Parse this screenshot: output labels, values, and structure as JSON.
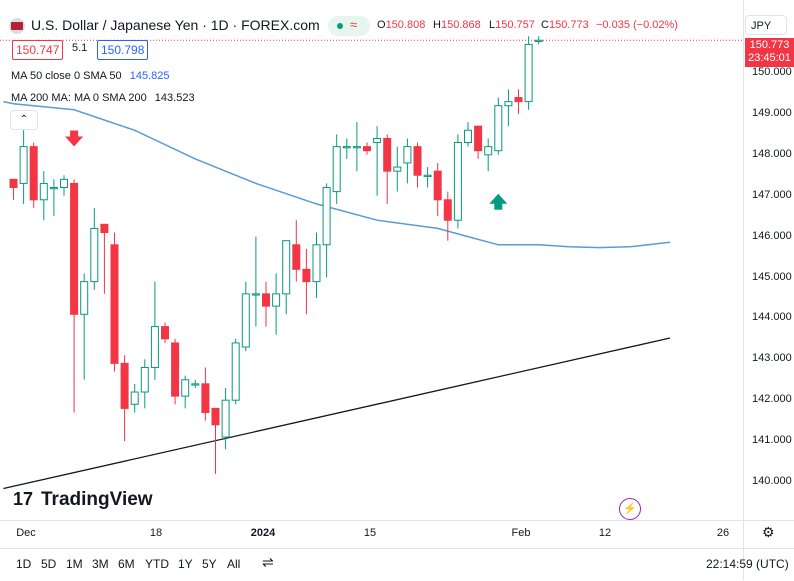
{
  "header": {
    "title": "U.S. Dollar / Japanese Yen · 1D · FOREX.com",
    "ohlc": {
      "o_label": "O",
      "o": "150.808",
      "h_label": "H",
      "h": "150.868",
      "l_label": "L",
      "l": "150.757",
      "c_label": "C",
      "c": "150.773",
      "change": "−0.035 (−0.02%)"
    }
  },
  "trade": {
    "sell": "150.747",
    "spread": "5.1",
    "buy": "150.798"
  },
  "indicators": {
    "ma50_label": "MA 50 close 0 SMA 50",
    "ma50_value": "145.825",
    "ma200_label": "MA 200 MA: MA 0 SMA 200",
    "ma200_value": "143.523"
  },
  "collapse_icon": "chevron-up-icon",
  "currency": "JPY",
  "last_price_tag": {
    "price": "150.773",
    "countdown": "23:45:01"
  },
  "watermark": "TradingView",
  "x_axis_labels": [
    "Dec",
    "18",
    "2024",
    "15",
    "Feb",
    "12",
    "26"
  ],
  "range_buttons": [
    "1D",
    "5D",
    "1M",
    "3M",
    "6M",
    "YTD",
    "1Y",
    "5Y",
    "All"
  ],
  "clock": "22:14:59 (UTC)",
  "colors": {
    "up": "#089981",
    "down": "#f23645",
    "ma50": "#5b9bd5",
    "trend": "#131722"
  },
  "chart_data": {
    "type": "candlestick",
    "title": "U.S. Dollar / Japanese Yen · 1D · FOREX.com",
    "ylim": [
      139.6,
      150.9
    ],
    "y_ticks": [
      140,
      141,
      142,
      143,
      144,
      145,
      146,
      147,
      148,
      149,
      150
    ],
    "x_ticks": [
      "Dec",
      "18",
      "2024",
      "15",
      "Feb",
      "12",
      "26"
    ],
    "candles": [
      {
        "o": 147.4,
        "h": 147.4,
        "l": 146.9,
        "c": 147.2
      },
      {
        "o": 147.3,
        "h": 148.6,
        "l": 146.8,
        "c": 148.2
      },
      {
        "o": 148.2,
        "h": 148.3,
        "l": 146.7,
        "c": 146.9
      },
      {
        "o": 146.9,
        "h": 147.6,
        "l": 146.4,
        "c": 147.3
      },
      {
        "o": 147.2,
        "h": 147.4,
        "l": 146.5,
        "c": 147.2
      },
      {
        "o": 147.2,
        "h": 147.5,
        "l": 147.0,
        "c": 147.4
      },
      {
        "o": 147.3,
        "h": 147.4,
        "l": 141.7,
        "c": 144.1
      },
      {
        "o": 144.1,
        "h": 145.1,
        "l": 142.5,
        "c": 144.9
      },
      {
        "o": 144.9,
        "h": 146.7,
        "l": 144.7,
        "c": 146.2
      },
      {
        "o": 146.3,
        "h": 146.3,
        "l": 144.6,
        "c": 146.1
      },
      {
        "o": 145.8,
        "h": 146.1,
        "l": 142.7,
        "c": 142.9
      },
      {
        "o": 142.9,
        "h": 143.1,
        "l": 141.0,
        "c": 141.8
      },
      {
        "o": 141.9,
        "h": 142.4,
        "l": 141.7,
        "c": 142.2
      },
      {
        "o": 142.2,
        "h": 143.0,
        "l": 141.8,
        "c": 142.8
      },
      {
        "o": 142.8,
        "h": 144.9,
        "l": 142.5,
        "c": 143.8
      },
      {
        "o": 143.8,
        "h": 143.9,
        "l": 143.4,
        "c": 143.5
      },
      {
        "o": 143.4,
        "h": 143.5,
        "l": 141.9,
        "c": 142.1
      },
      {
        "o": 142.1,
        "h": 142.6,
        "l": 141.8,
        "c": 142.5
      },
      {
        "o": 142.4,
        "h": 142.5,
        "l": 142.3,
        "c": 142.4
      },
      {
        "o": 142.4,
        "h": 142.8,
        "l": 141.5,
        "c": 141.7
      },
      {
        "o": 141.8,
        "h": 141.8,
        "l": 140.2,
        "c": 141.4
      },
      {
        "o": 141.1,
        "h": 142.3,
        "l": 140.8,
        "c": 142.0
      },
      {
        "o": 142.0,
        "h": 143.5,
        "l": 141.9,
        "c": 143.4
      },
      {
        "o": 143.3,
        "h": 144.9,
        "l": 143.2,
        "c": 144.6
      },
      {
        "o": 144.6,
        "h": 146.0,
        "l": 143.8,
        "c": 144.6
      },
      {
        "o": 144.6,
        "h": 144.9,
        "l": 143.8,
        "c": 144.3
      },
      {
        "o": 144.3,
        "h": 145.1,
        "l": 143.6,
        "c": 144.6
      },
      {
        "o": 144.6,
        "h": 145.9,
        "l": 144.1,
        "c": 145.9
      },
      {
        "o": 145.8,
        "h": 146.4,
        "l": 144.9,
        "c": 145.2
      },
      {
        "o": 145.2,
        "h": 145.7,
        "l": 144.1,
        "c": 144.9
      },
      {
        "o": 144.9,
        "h": 146.1,
        "l": 144.5,
        "c": 145.8
      },
      {
        "o": 145.8,
        "h": 147.3,
        "l": 145.0,
        "c": 147.2
      },
      {
        "o": 147.1,
        "h": 148.5,
        "l": 146.8,
        "c": 148.2
      },
      {
        "o": 148.2,
        "h": 148.4,
        "l": 147.9,
        "c": 148.2
      },
      {
        "o": 148.2,
        "h": 148.8,
        "l": 147.6,
        "c": 148.2
      },
      {
        "o": 148.2,
        "h": 148.3,
        "l": 148.0,
        "c": 148.1
      },
      {
        "o": 148.3,
        "h": 148.7,
        "l": 147.0,
        "c": 148.4
      },
      {
        "o": 148.4,
        "h": 148.5,
        "l": 146.8,
        "c": 147.6
      },
      {
        "o": 147.6,
        "h": 148.2,
        "l": 147.1,
        "c": 147.7
      },
      {
        "o": 147.8,
        "h": 148.4,
        "l": 147.3,
        "c": 148.2
      },
      {
        "o": 148.2,
        "h": 148.3,
        "l": 147.2,
        "c": 147.5
      },
      {
        "o": 147.5,
        "h": 147.7,
        "l": 147.2,
        "c": 147.5
      },
      {
        "o": 147.6,
        "h": 147.8,
        "l": 146.5,
        "c": 146.9
      },
      {
        "o": 146.9,
        "h": 147.1,
        "l": 145.9,
        "c": 146.4
      },
      {
        "o": 146.4,
        "h": 148.5,
        "l": 146.2,
        "c": 148.3
      },
      {
        "o": 148.3,
        "h": 148.8,
        "l": 148.2,
        "c": 148.6
      },
      {
        "o": 148.7,
        "h": 148.7,
        "l": 147.9,
        "c": 148.1
      },
      {
        "o": 148.0,
        "h": 148.4,
        "l": 147.6,
        "c": 148.2
      },
      {
        "o": 148.1,
        "h": 149.4,
        "l": 148.0,
        "c": 149.2
      },
      {
        "o": 149.2,
        "h": 149.6,
        "l": 148.7,
        "c": 149.3
      },
      {
        "o": 149.4,
        "h": 149.6,
        "l": 149.0,
        "c": 149.3
      },
      {
        "o": 149.3,
        "h": 150.9,
        "l": 149.1,
        "c": 150.7
      },
      {
        "o": 150.8,
        "h": 150.9,
        "l": 150.7,
        "c": 150.8
      }
    ],
    "ma50": [
      [
        -1,
        149.3
      ],
      [
        0,
        149.25
      ],
      [
        6,
        149.1
      ],
      [
        12,
        148.6
      ],
      [
        18,
        147.9
      ],
      [
        24,
        147.3
      ],
      [
        30,
        146.8
      ],
      [
        36,
        146.4
      ],
      [
        42,
        146.2
      ],
      [
        45,
        146.0
      ],
      [
        48,
        145.8
      ],
      [
        52,
        145.8
      ],
      [
        55,
        145.75
      ],
      [
        58,
        145.73
      ],
      [
        61,
        145.75
      ],
      [
        65,
        145.86
      ]
    ],
    "ma200": [
      [
        -1,
        139.84
      ],
      [
        65,
        143.52
      ]
    ],
    "annotations": [
      {
        "type": "arrow-down",
        "color": "#f23645",
        "x": 6,
        "y": 148.35
      },
      {
        "type": "arrow-up",
        "color": "#089981",
        "x": 48,
        "y": 146.9
      }
    ]
  }
}
